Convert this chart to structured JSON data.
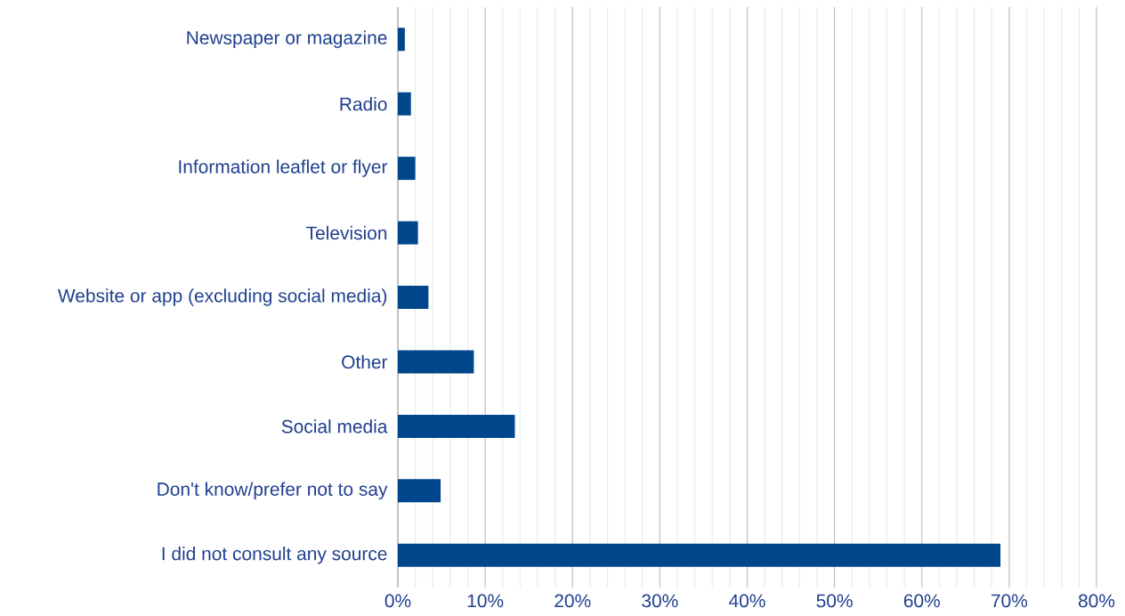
{
  "chart_data": {
    "type": "bar",
    "orientation": "horizontal",
    "categories": [
      "Newspaper or magazine",
      "Radio",
      "Information leaflet or flyer",
      "Television",
      "Website or app (excluding social media)",
      "Other",
      "Social media",
      "Don't know/prefer not to say",
      "I did not consult any source"
    ],
    "values": [
      0.8,
      1.5,
      2.0,
      2.3,
      3.5,
      8.7,
      13.4,
      4.9,
      69.0
    ],
    "color": "#00468b",
    "xlim": [
      0,
      80
    ],
    "xticks": [
      {
        "value": 0,
        "label": "0%"
      },
      {
        "value": 10,
        "label": "10%"
      },
      {
        "value": 20,
        "label": "20%"
      },
      {
        "value": 30,
        "label": "30%"
      },
      {
        "value": 40,
        "label": "40%"
      },
      {
        "value": 50,
        "label": "50%"
      },
      {
        "value": 60,
        "label": "60%"
      },
      {
        "value": 70,
        "label": "70%"
      },
      {
        "value": 80,
        "label": "80%"
      }
    ],
    "grid": "x"
  }
}
